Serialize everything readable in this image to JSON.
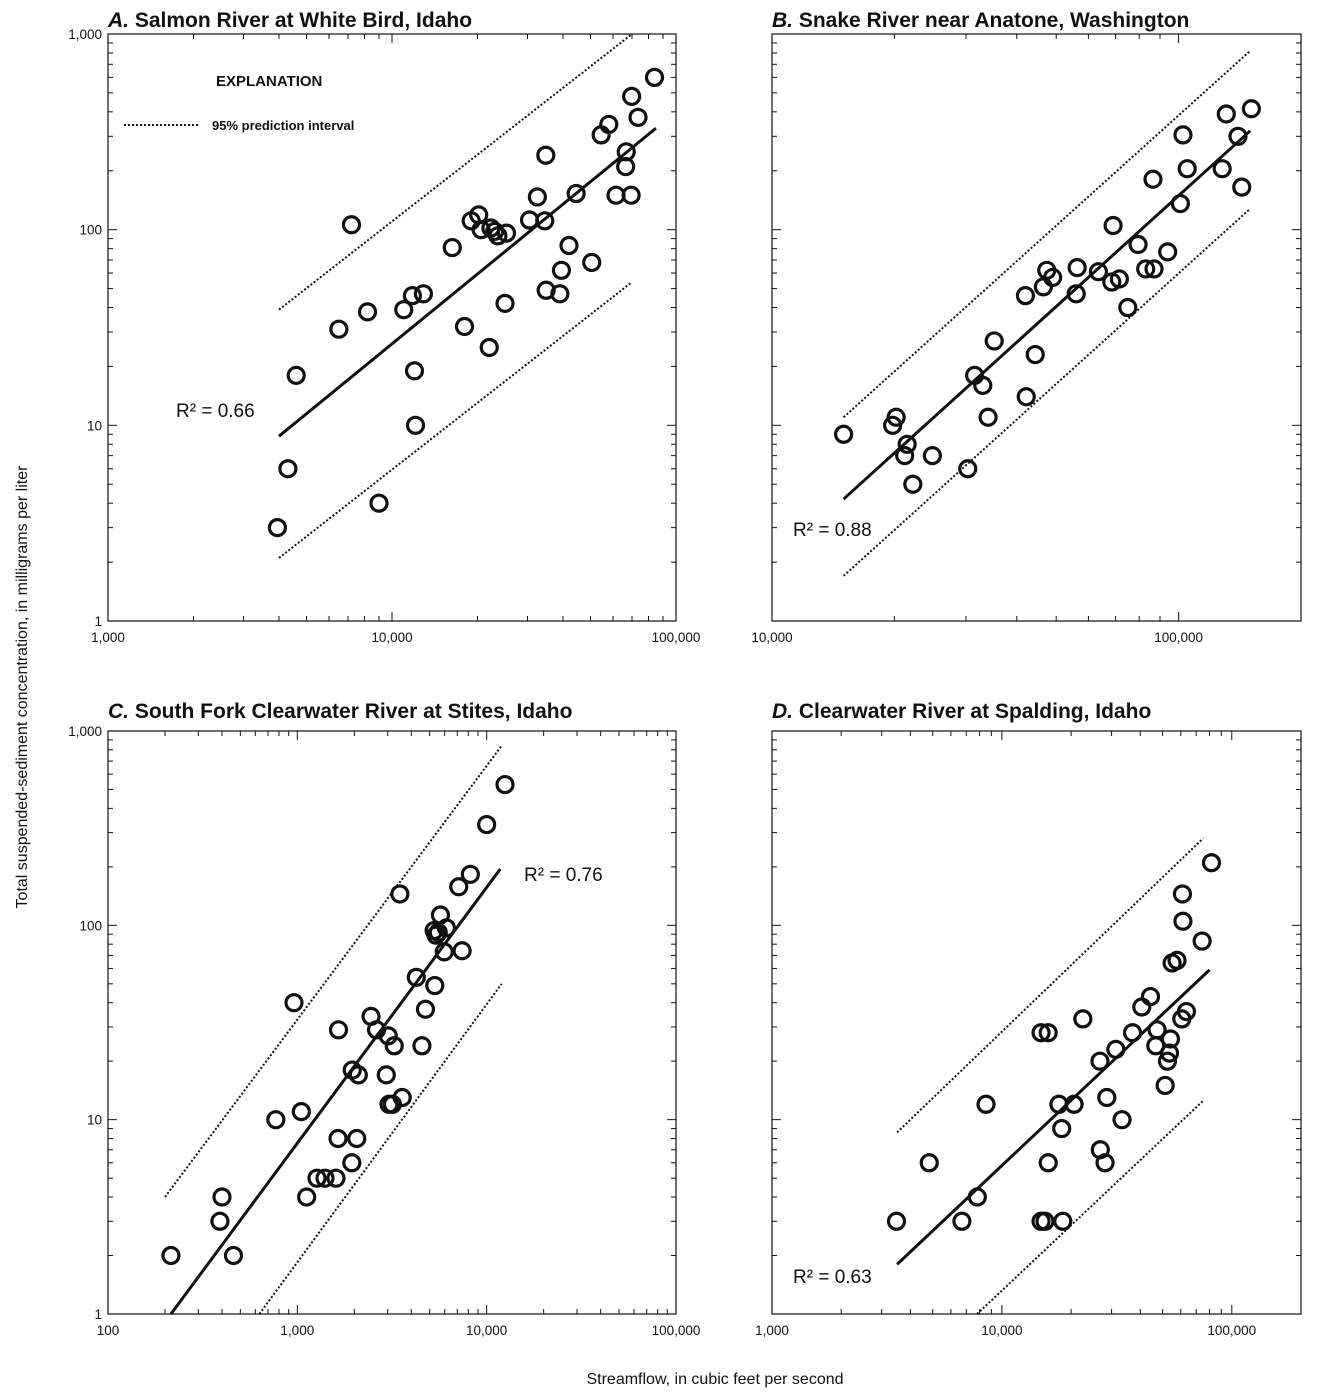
{
  "figure": {
    "xlabel": "Streamflow, in cubic feet per second",
    "ylabel": "Total suspended-sediment concentration, in milligrams per liter",
    "legend": {
      "title": "EXPLANATION",
      "item": "95% prediction interval",
      "placement": "top-left of panel A"
    },
    "point_style": {
      "shape": "open-circle",
      "color": "#111111"
    }
  },
  "chart_data": [
    {
      "type": "scatter",
      "letter": "A.",
      "title": "Salmon River at White Bird, Idaho",
      "xscale": "log",
      "yscale": "log",
      "xlim": [
        1000,
        100000
      ],
      "ylim": [
        1,
        1000
      ],
      "x_ticks": [
        "1,000",
        "10,000",
        "100,000"
      ],
      "y_ticks": [
        "1",
        "10",
        "100",
        "1,000"
      ],
      "r2_label": "R² = 0.66",
      "regression": {
        "x": [
          4000,
          85000
        ],
        "y": [
          8.8,
          330
        ]
      },
      "upper_pi": {
        "x": [
          4000,
          70000
        ],
        "y": [
          39,
          1000
        ]
      },
      "lower_pi": {
        "x": [
          4000,
          70000
        ],
        "y": [
          2.1,
          54
        ]
      },
      "points": [
        {
          "x": 3950,
          "y": 3
        },
        {
          "x": 4300,
          "y": 6
        },
        {
          "x": 4600,
          "y": 18
        },
        {
          "x": 6500,
          "y": 31
        },
        {
          "x": 7200,
          "y": 106
        },
        {
          "x": 8200,
          "y": 38
        },
        {
          "x": 9000,
          "y": 4
        },
        {
          "x": 11000,
          "y": 39
        },
        {
          "x": 11800,
          "y": 46
        },
        {
          "x": 12000,
          "y": 19
        },
        {
          "x": 12100,
          "y": 10
        },
        {
          "x": 12900,
          "y": 47
        },
        {
          "x": 16300,
          "y": 81
        },
        {
          "x": 18000,
          "y": 32
        },
        {
          "x": 19000,
          "y": 111
        },
        {
          "x": 20200,
          "y": 119
        },
        {
          "x": 20600,
          "y": 100
        },
        {
          "x": 22000,
          "y": 25
        },
        {
          "x": 22300,
          "y": 102
        },
        {
          "x": 23000,
          "y": 98
        },
        {
          "x": 23600,
          "y": 93
        },
        {
          "x": 25000,
          "y": 42
        },
        {
          "x": 25300,
          "y": 96
        },
        {
          "x": 30500,
          "y": 112
        },
        {
          "x": 32500,
          "y": 147
        },
        {
          "x": 34500,
          "y": 111
        },
        {
          "x": 34800,
          "y": 240
        },
        {
          "x": 34900,
          "y": 49
        },
        {
          "x": 39000,
          "y": 47
        },
        {
          "x": 39500,
          "y": 62
        },
        {
          "x": 42000,
          "y": 83
        },
        {
          "x": 44500,
          "y": 153
        },
        {
          "x": 50500,
          "y": 68
        },
        {
          "x": 54500,
          "y": 305
        },
        {
          "x": 58000,
          "y": 345
        },
        {
          "x": 61500,
          "y": 150
        },
        {
          "x": 66500,
          "y": 210
        },
        {
          "x": 66800,
          "y": 250
        },
        {
          "x": 69500,
          "y": 150
        },
        {
          "x": 69800,
          "y": 480
        },
        {
          "x": 73500,
          "y": 375
        },
        {
          "x": 84000,
          "y": 600
        }
      ]
    },
    {
      "type": "scatter",
      "letter": "B.",
      "title": "Snake River near Anatone, Washington",
      "xscale": "log",
      "yscale": "log",
      "xlim": [
        10000,
        200000
      ],
      "ylim": [
        1,
        1000
      ],
      "x_ticks": [
        "10,000",
        "100,000"
      ],
      "y_ticks": [],
      "r2_label": "R² = 0.88",
      "regression": {
        "x": [
          15000,
          150000
        ],
        "y": [
          4.2,
          320
        ]
      },
      "upper_pi": {
        "x": [
          15000,
          150000
        ],
        "y": [
          11,
          820
        ]
      },
      "lower_pi": {
        "x": [
          15000,
          150000
        ],
        "y": [
          1.7,
          128
        ]
      },
      "points": [
        {
          "x": 15000,
          "y": 9
        },
        {
          "x": 19800,
          "y": 10
        },
        {
          "x": 20200,
          "y": 11
        },
        {
          "x": 21200,
          "y": 7
        },
        {
          "x": 21500,
          "y": 8
        },
        {
          "x": 22200,
          "y": 5
        },
        {
          "x": 24800,
          "y": 7
        },
        {
          "x": 30300,
          "y": 6
        },
        {
          "x": 31500,
          "y": 18
        },
        {
          "x": 33000,
          "y": 16
        },
        {
          "x": 34000,
          "y": 11
        },
        {
          "x": 35200,
          "y": 27
        },
        {
          "x": 42000,
          "y": 46
        },
        {
          "x": 42200,
          "y": 14
        },
        {
          "x": 44400,
          "y": 23
        },
        {
          "x": 46500,
          "y": 51
        },
        {
          "x": 47400,
          "y": 62
        },
        {
          "x": 49000,
          "y": 57
        },
        {
          "x": 56000,
          "y": 47
        },
        {
          "x": 56300,
          "y": 64
        },
        {
          "x": 63500,
          "y": 61
        },
        {
          "x": 68500,
          "y": 54
        },
        {
          "x": 69000,
          "y": 105
        },
        {
          "x": 71500,
          "y": 56
        },
        {
          "x": 75000,
          "y": 40
        },
        {
          "x": 79500,
          "y": 84
        },
        {
          "x": 83000,
          "y": 63
        },
        {
          "x": 86500,
          "y": 181
        },
        {
          "x": 87000,
          "y": 63
        },
        {
          "x": 94000,
          "y": 77
        },
        {
          "x": 101000,
          "y": 136
        },
        {
          "x": 102500,
          "y": 305
        },
        {
          "x": 105000,
          "y": 205
        },
        {
          "x": 128000,
          "y": 205
        },
        {
          "x": 131000,
          "y": 390
        },
        {
          "x": 140000,
          "y": 300
        },
        {
          "x": 143000,
          "y": 165
        },
        {
          "x": 151000,
          "y": 415
        }
      ]
    },
    {
      "type": "scatter",
      "letter": "C.",
      "title": "South Fork Clearwater River at Stites, Idaho",
      "xscale": "log",
      "yscale": "log",
      "xlim": [
        100,
        100000
      ],
      "ylim": [
        1,
        1000
      ],
      "x_ticks": [
        "100",
        "1,000",
        "10,000",
        "100,000"
      ],
      "y_ticks": [
        "1",
        "10",
        "100",
        "1,000"
      ],
      "r2_label": "R² = 0.76",
      "regression": {
        "x": [
          215,
          11800
        ],
        "y": [
          1,
          195
        ]
      },
      "upper_pi": {
        "x": [
          200,
          12000
        ],
        "y": [
          4,
          840
        ]
      },
      "lower_pi": {
        "x": [
          630,
          12000
        ],
        "y": [
          1,
          50
        ]
      },
      "points": [
        {
          "x": 215,
          "y": 2
        },
        {
          "x": 390,
          "y": 3
        },
        {
          "x": 400,
          "y": 4
        },
        {
          "x": 460,
          "y": 2
        },
        {
          "x": 770,
          "y": 10
        },
        {
          "x": 960,
          "y": 40
        },
        {
          "x": 1050,
          "y": 11
        },
        {
          "x": 1120,
          "y": 4
        },
        {
          "x": 1270,
          "y": 5
        },
        {
          "x": 1400,
          "y": 5
        },
        {
          "x": 1600,
          "y": 5
        },
        {
          "x": 1640,
          "y": 8
        },
        {
          "x": 1650,
          "y": 29
        },
        {
          "x": 1940,
          "y": 6
        },
        {
          "x": 1950,
          "y": 18
        },
        {
          "x": 2060,
          "y": 8
        },
        {
          "x": 2100,
          "y": 17
        },
        {
          "x": 2450,
          "y": 34
        },
        {
          "x": 2620,
          "y": 29
        },
        {
          "x": 2950,
          "y": 17
        },
        {
          "x": 3020,
          "y": 27
        },
        {
          "x": 3050,
          "y": 12
        },
        {
          "x": 3180,
          "y": 12
        },
        {
          "x": 3250,
          "y": 24
        },
        {
          "x": 3480,
          "y": 145
        },
        {
          "x": 3580,
          "y": 13
        },
        {
          "x": 4250,
          "y": 54
        },
        {
          "x": 4550,
          "y": 24
        },
        {
          "x": 4750,
          "y": 37
        },
        {
          "x": 5280,
          "y": 94
        },
        {
          "x": 5320,
          "y": 49
        },
        {
          "x": 5400,
          "y": 89
        },
        {
          "x": 5550,
          "y": 92
        },
        {
          "x": 5700,
          "y": 113
        },
        {
          "x": 5970,
          "y": 73
        },
        {
          "x": 6130,
          "y": 97
        },
        {
          "x": 7120,
          "y": 158
        },
        {
          "x": 7420,
          "y": 74
        },
        {
          "x": 8200,
          "y": 183
        },
        {
          "x": 10000,
          "y": 330
        },
        {
          "x": 12500,
          "y": 530
        }
      ]
    },
    {
      "type": "scatter",
      "letter": "D.",
      "title": "Clearwater River at Spalding, Idaho",
      "xscale": "log",
      "yscale": "log",
      "xlim": [
        1000,
        200000
      ],
      "ylim": [
        1,
        1000
      ],
      "x_ticks": [
        "1,000",
        "10,000",
        "100,000"
      ],
      "y_ticks": [],
      "r2_label": "R² = 0.63",
      "regression": {
        "x": [
          3500,
          80000
        ],
        "y": [
          1.8,
          59
        ]
      },
      "upper_pi": {
        "x": [
          3500,
          75000
        ],
        "y": [
          8.6,
          280
        ]
      },
      "lower_pi": {
        "x": [
          7800,
          75000
        ],
        "y": [
          1,
          12.5
        ]
      },
      "points": [
        {
          "x": 3480,
          "y": 3
        },
        {
          "x": 4830,
          "y": 6
        },
        {
          "x": 6700,
          "y": 3
        },
        {
          "x": 7820,
          "y": 4
        },
        {
          "x": 8530,
          "y": 12
        },
        {
          "x": 14800,
          "y": 28
        },
        {
          "x": 14800,
          "y": 3
        },
        {
          "x": 15400,
          "y": 3
        },
        {
          "x": 15900,
          "y": 28
        },
        {
          "x": 15900,
          "y": 6
        },
        {
          "x": 17700,
          "y": 12
        },
        {
          "x": 18200,
          "y": 9
        },
        {
          "x": 18400,
          "y": 3
        },
        {
          "x": 20600,
          "y": 12
        },
        {
          "x": 22500,
          "y": 33
        },
        {
          "x": 26700,
          "y": 20
        },
        {
          "x": 26800,
          "y": 7
        },
        {
          "x": 28100,
          "y": 6
        },
        {
          "x": 28600,
          "y": 13
        },
        {
          "x": 31300,
          "y": 23
        },
        {
          "x": 33300,
          "y": 10
        },
        {
          "x": 37000,
          "y": 28
        },
        {
          "x": 40600,
          "y": 38
        },
        {
          "x": 44300,
          "y": 43
        },
        {
          "x": 46700,
          "y": 24
        },
        {
          "x": 47300,
          "y": 29
        },
        {
          "x": 51300,
          "y": 15
        },
        {
          "x": 52500,
          "y": 20
        },
        {
          "x": 53600,
          "y": 22
        },
        {
          "x": 54100,
          "y": 26
        },
        {
          "x": 55000,
          "y": 64
        },
        {
          "x": 57800,
          "y": 66
        },
        {
          "x": 60600,
          "y": 33
        },
        {
          "x": 61000,
          "y": 145
        },
        {
          "x": 61300,
          "y": 105
        },
        {
          "x": 63500,
          "y": 36
        },
        {
          "x": 74300,
          "y": 83
        },
        {
          "x": 81600,
          "y": 210
        }
      ]
    }
  ]
}
